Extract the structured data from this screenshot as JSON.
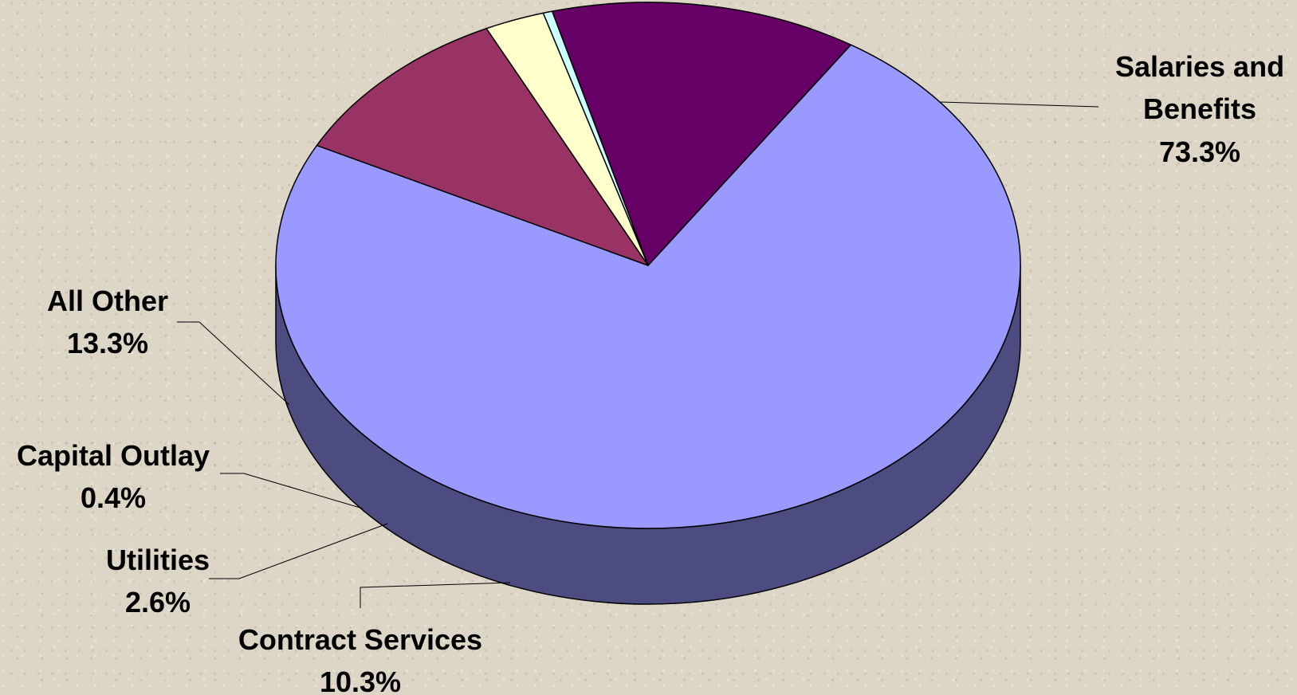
{
  "chart_data": {
    "type": "pie",
    "style": "3d",
    "legend": "none",
    "slices": [
      {
        "name": "Salaries and Benefits",
        "label_lines": [
          "Salaries and",
          "Benefits"
        ],
        "value": 73.3,
        "value_label": "73.3%",
        "color": "#9999ff",
        "side_color": "#4c4c80"
      },
      {
        "name": "Contract Services",
        "label_lines": [
          "Contract Services"
        ],
        "value": 10.3,
        "value_label": "10.3%",
        "color": "#993366",
        "side_color": "#4c1a33"
      },
      {
        "name": "Utilities",
        "label_lines": [
          "Utilities"
        ],
        "value": 2.6,
        "value_label": "2.6%",
        "color": "#ffffcc",
        "side_color": "#808066"
      },
      {
        "name": "Capital Outlay",
        "label_lines": [
          "Capital Outlay"
        ],
        "value": 0.4,
        "value_label": "0.4%",
        "color": "#ccffff",
        "side_color": "#668080"
      },
      {
        "name": "All Other",
        "label_lines": [
          "All Other"
        ],
        "value": 13.3,
        "value_label": "13.3%",
        "color": "#660066",
        "side_color": "#330033"
      }
    ]
  }
}
